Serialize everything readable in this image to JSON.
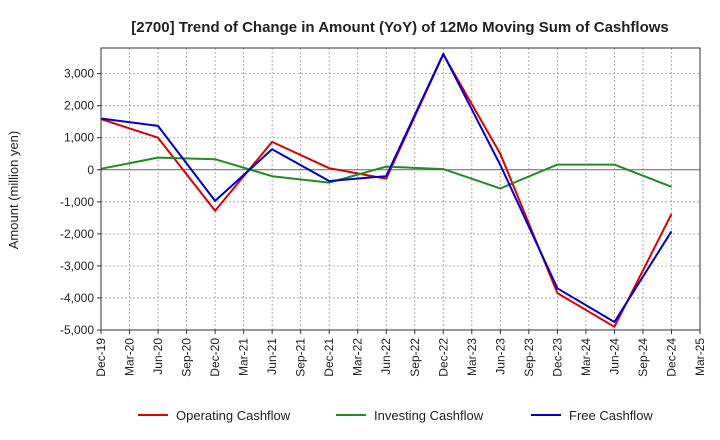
{
  "chart_data": {
    "type": "line",
    "title": "[2700]  Trend of Change in Amount (YoY) of 12Mo Moving Sum of Cashflows",
    "xlabel": "",
    "ylabel": "Amount (million yen)",
    "ylim": [
      -5000,
      3800
    ],
    "yticks": [
      3000,
      2000,
      1000,
      0,
      -1000,
      -2000,
      -3000,
      -4000,
      -5000
    ],
    "ytick_labels": [
      "3,000",
      "2,000",
      "1,000",
      "0",
      "-1,000",
      "-2,000",
      "-3,000",
      "-4,000",
      "-5,000"
    ],
    "categories": [
      "Dec-19",
      "Mar-20",
      "Jun-20",
      "Sep-20",
      "Dec-20",
      "Mar-21",
      "Jun-21",
      "Sep-21",
      "Dec-21",
      "Mar-22",
      "Jun-22",
      "Sep-22",
      "Dec-22",
      "Mar-23",
      "Jun-23",
      "Sep-23",
      "Dec-23",
      "Mar-24",
      "Jun-24",
      "Sep-24",
      "Dec-24",
      "Mar-25"
    ],
    "grid": true,
    "legend_position": "bottom",
    "series": [
      {
        "name": "Operating Cashflow",
        "color": "#dd0000",
        "points": [
          [
            0,
            1580
          ],
          [
            2,
            1000
          ],
          [
            4,
            -1280
          ],
          [
            6,
            870
          ],
          [
            8,
            50
          ],
          [
            10,
            -280
          ],
          [
            12,
            3600
          ],
          [
            14,
            500
          ],
          [
            16,
            -3850
          ],
          [
            18,
            -4900
          ],
          [
            20,
            -1380
          ]
        ]
      },
      {
        "name": "Investing Cashflow",
        "color": "#228b22",
        "points": [
          [
            0,
            30
          ],
          [
            2,
            380
          ],
          [
            4,
            330
          ],
          [
            6,
            -200
          ],
          [
            8,
            -400
          ],
          [
            10,
            100
          ],
          [
            12,
            20
          ],
          [
            14,
            -580
          ],
          [
            16,
            160
          ],
          [
            18,
            160
          ],
          [
            20,
            -530
          ]
        ]
      },
      {
        "name": "Free Cashflow",
        "color": "#0000cc",
        "points": [
          [
            0,
            1600
          ],
          [
            2,
            1370
          ],
          [
            4,
            -970
          ],
          [
            6,
            640
          ],
          [
            8,
            -350
          ],
          [
            10,
            -200
          ],
          [
            12,
            3620
          ],
          [
            14,
            150
          ],
          [
            16,
            -3700
          ],
          [
            18,
            -4750
          ],
          [
            20,
            -1920
          ]
        ]
      }
    ]
  }
}
